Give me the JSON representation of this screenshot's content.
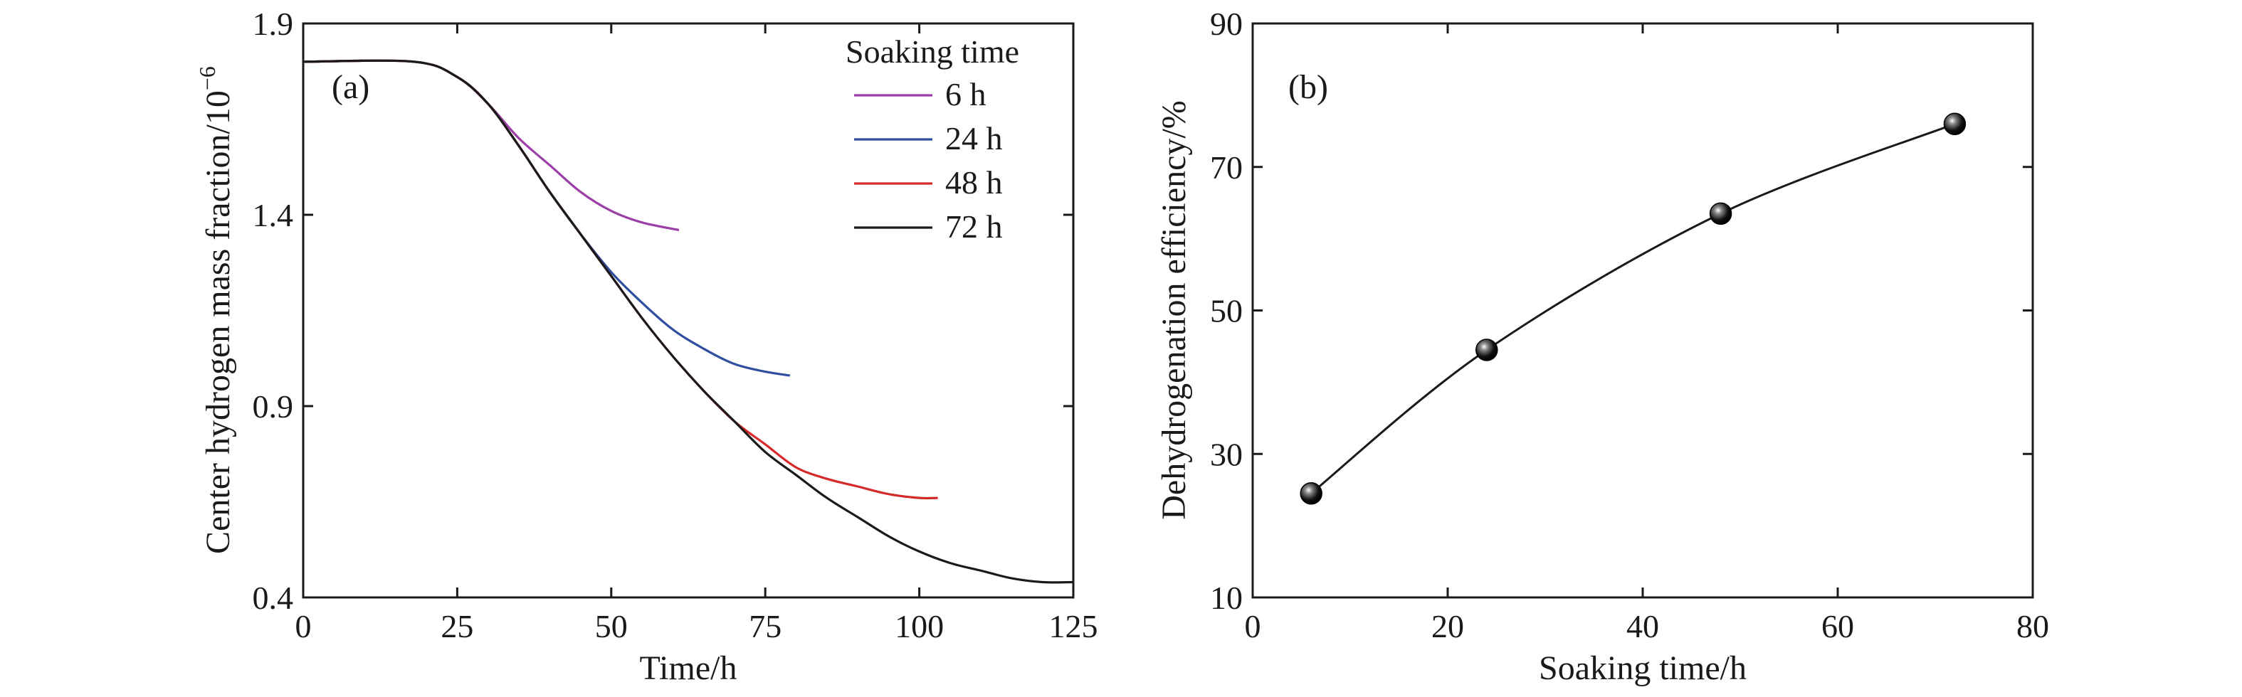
{
  "chart_data": [
    {
      "type": "line",
      "panel_label": "(a)",
      "xlabel": "Time/h",
      "ylabel": "Center hydrogen mass fraction/10",
      "ylabel_exponent": "−6",
      "xlim": [
        0,
        125
      ],
      "ylim": [
        0.4,
        1.9
      ],
      "xticks": [
        "0",
        "25",
        "50",
        "75",
        "100",
        "125"
      ],
      "yticks": [
        "0.4",
        "0.9",
        "1.4",
        "1.9"
      ],
      "legend": {
        "title": "Soaking time",
        "position": "top-right"
      },
      "grid": false,
      "series": [
        {
          "name": "6 h",
          "color": "#9b3fa6",
          "x": [
            0,
            18,
            25,
            30,
            35,
            40,
            45,
            50,
            55,
            61
          ],
          "y": [
            1.8,
            1.8,
            1.76,
            1.69,
            1.6,
            1.53,
            1.46,
            1.41,
            1.38,
            1.36
          ]
        },
        {
          "name": "24 h",
          "color": "#2f4ea0",
          "x": [
            0,
            18,
            25,
            30,
            35,
            40,
            45,
            50,
            55,
            60,
            65,
            70,
            75,
            79
          ],
          "y": [
            1.8,
            1.8,
            1.76,
            1.69,
            1.58,
            1.46,
            1.35,
            1.25,
            1.17,
            1.1,
            1.05,
            1.01,
            0.99,
            0.98
          ]
        },
        {
          "name": "48 h",
          "color": "#d62a2a",
          "x": [
            0,
            18,
            25,
            30,
            35,
            40,
            45,
            50,
            55,
            60,
            65,
            70,
            75,
            80,
            85,
            90,
            95,
            100,
            103
          ],
          "y": [
            1.8,
            1.8,
            1.76,
            1.69,
            1.58,
            1.46,
            1.35,
            1.24,
            1.13,
            1.03,
            0.94,
            0.86,
            0.8,
            0.74,
            0.71,
            0.69,
            0.67,
            0.66,
            0.66
          ]
        },
        {
          "name": "72 h",
          "color": "#1a1a1a",
          "x": [
            0,
            18,
            25,
            30,
            35,
            40,
            45,
            50,
            55,
            60,
            65,
            70,
            75,
            80,
            85,
            90,
            95,
            100,
            105,
            110,
            115,
            120,
            125
          ],
          "y": [
            1.8,
            1.8,
            1.76,
            1.69,
            1.58,
            1.46,
            1.35,
            1.24,
            1.13,
            1.03,
            0.94,
            0.86,
            0.78,
            0.72,
            0.66,
            0.61,
            0.56,
            0.52,
            0.49,
            0.47,
            0.45,
            0.44,
            0.44
          ]
        }
      ]
    },
    {
      "type": "scatter",
      "panel_label": "(b)",
      "xlabel": "Soaking time/h",
      "ylabel": "Dehydrogenation efficiency/%",
      "xlim": [
        0,
        80
      ],
      "ylim": [
        10,
        90
      ],
      "xticks": [
        "0",
        "20",
        "40",
        "60",
        "80"
      ],
      "yticks": [
        "10",
        "30",
        "50",
        "70",
        "90"
      ],
      "grid": false,
      "marker_color": "#111111",
      "points": {
        "x": [
          6,
          24,
          48,
          72
        ],
        "y": [
          24.5,
          44.5,
          63.5,
          76
        ]
      }
    }
  ]
}
